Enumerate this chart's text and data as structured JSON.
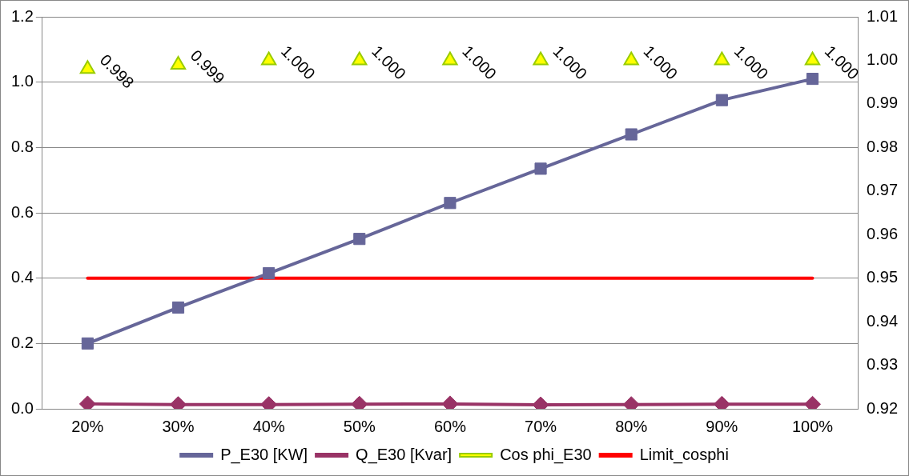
{
  "chart_data": {
    "type": "line",
    "categories": [
      "20%",
      "30%",
      "40%",
      "50%",
      "60%",
      "70%",
      "80%",
      "90%",
      "100%"
    ],
    "series": [
      {
        "name": "P_E30 [KW]",
        "color": "#666699",
        "marker": "square",
        "values": [
          0.2,
          0.31,
          0.415,
          0.52,
          0.63,
          0.735,
          0.84,
          0.945,
          1.01
        ]
      },
      {
        "name": "Q_E30 [Kvar]",
        "color": "#993366",
        "marker": "diamond",
        "values": [
          0.015,
          0.013,
          0.013,
          0.014,
          0.015,
          0.012,
          0.013,
          0.014,
          0.014
        ]
      },
      {
        "name": "Cos phi_E30",
        "type": "scatter",
        "color": "#ffff00",
        "marker": "triangle",
        "axis": "y2",
        "values": [
          0.998,
          0.999,
          1.0,
          1.0,
          1.0,
          1.0,
          1.0,
          1.0,
          1.0
        ],
        "value_labels": [
          "0.998",
          "0.999",
          "1.000",
          "1.000",
          "1.000",
          "1.000",
          "1.000",
          "1.000",
          "1.000"
        ]
      },
      {
        "name": "Limit_cosphi",
        "color": "#ff0000",
        "marker": "none",
        "axis": "y2",
        "values": [
          0.95,
          0.95,
          0.95,
          0.95,
          0.95,
          0.95,
          0.95,
          0.95,
          0.95
        ]
      }
    ],
    "ylim": [
      0,
      1.2
    ],
    "yticks": [
      {
        "value": 0,
        "label": "0.0"
      },
      {
        "value": 0.2,
        "label": "0.2"
      },
      {
        "value": 0.4,
        "label": "0.4"
      },
      {
        "value": 0.6,
        "label": "0.6"
      },
      {
        "value": 0.8,
        "label": "0.8"
      },
      {
        "value": 1,
        "label": "1.0"
      },
      {
        "value": 1.2,
        "label": "1.2"
      }
    ],
    "y2lim": [
      0.92,
      1.01
    ],
    "y2ticks": [
      0.92,
      0.93,
      0.94,
      0.95,
      0.96,
      0.97,
      0.98,
      0.99,
      {
        "value": 1,
        "label": "1.00"
      },
      1.01
    ],
    "grid": "y",
    "legend": "bottom"
  }
}
